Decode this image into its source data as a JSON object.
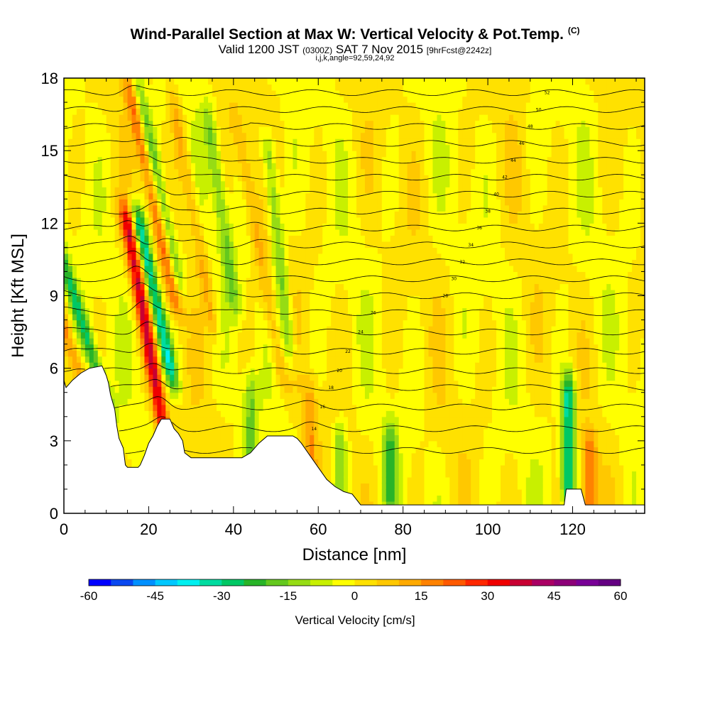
{
  "header": {
    "title": "Wind-Parallel Section at Max W: Vertical Velocity & Pot.Temp.",
    "copyright": "(C)",
    "valid_prefix": "Valid 1200 JST",
    "valid_utc": "(0300Z)",
    "valid_date": "SAT 7 Nov 2015",
    "forecast": "[9hrFcst@2242z]",
    "indices": "i,j,k,angle=92,59,24,92"
  },
  "chart_data": {
    "type": "heatmap",
    "xlabel": "Distance [nm]",
    "ylabel": "Height [Kft MSL]",
    "xlim": [
      0,
      137
    ],
    "ylim": [
      0,
      18
    ],
    "x_ticks": [
      0,
      20,
      40,
      60,
      80,
      100,
      120
    ],
    "y_ticks": [
      0,
      3,
      6,
      9,
      12,
      15,
      18
    ],
    "colorbar": {
      "label": "Vertical Velocity [cm/s]",
      "range": [
        -60,
        60
      ],
      "ticks": [
        -60,
        -45,
        -30,
        -15,
        0,
        15,
        30,
        45,
        60
      ],
      "colors": [
        "#0000ff",
        "#0a48f0",
        "#0090ff",
        "#00c8ff",
        "#00f0f0",
        "#00dca0",
        "#00c864",
        "#28b428",
        "#64c81e",
        "#96dc14",
        "#c8f000",
        "#ffff00",
        "#ffe100",
        "#ffc800",
        "#ffaa00",
        "#ff8200",
        "#ff5a00",
        "#ff2800",
        "#f00000",
        "#c80032",
        "#aa0064",
        "#8c0078",
        "#780096",
        "#640082"
      ]
    },
    "terrain_profile": {
      "x": [
        0,
        0.5,
        2,
        4,
        6,
        9,
        10,
        10.5,
        11,
        12,
        12.5,
        13,
        14,
        14.5,
        15,
        17.5,
        18,
        19,
        20,
        21,
        22,
        23,
        25,
        26,
        27,
        28,
        28.5,
        30,
        40,
        42,
        44,
        46,
        48,
        50,
        52,
        54,
        55,
        56,
        58,
        60,
        62,
        64,
        66,
        68,
        70,
        118,
        118.5,
        122,
        123,
        137
      ],
      "y": [
        5.5,
        5.2,
        5.5,
        5.8,
        6.0,
        6.1,
        5.7,
        5.4,
        4.9,
        4.3,
        3.6,
        3.1,
        2.7,
        2.0,
        1.9,
        1.9,
        2.0,
        2.4,
        2.9,
        3.2,
        3.6,
        3.9,
        3.9,
        3.5,
        3.3,
        3.0,
        2.5,
        2.3,
        2.3,
        2.3,
        2.5,
        2.9,
        3.2,
        3.2,
        3.2,
        3.2,
        3.1,
        2.9,
        2.4,
        1.9,
        1.4,
        1.1,
        0.9,
        0.8,
        0.35,
        0.35,
        1.0,
        1.0,
        0.35,
        0.35
      ]
    },
    "updraft_bands": [
      {
        "x": 8.5,
        "y0": 3,
        "y1": 17,
        "w": 15,
        "tilt": -1.8
      },
      {
        "x": 24,
        "y0": 3,
        "y1": 12,
        "w": 35,
        "tilt": -1.0
      },
      {
        "x": 26,
        "y0": 9,
        "y1": 17.5,
        "w": 22,
        "tilt": -1.2
      },
      {
        "x": 35,
        "y0": 8,
        "y1": 17,
        "w": 12,
        "tilt": -1.0
      },
      {
        "x": 51,
        "y0": 6,
        "y1": 16,
        "w": 10,
        "tilt": -1.0
      },
      {
        "x": 58,
        "y0": 2,
        "y1": 4.5,
        "w": 14,
        "tilt": 0
      },
      {
        "x": 124,
        "y0": 0.4,
        "y1": 2.5,
        "w": 20,
        "tilt": 0
      }
    ],
    "downdraft_bands": [
      {
        "x": 9.5,
        "y0": 5,
        "y1": 16,
        "w": -25,
        "tilt": -1.8
      },
      {
        "x": 25,
        "y0": 6,
        "y1": 12,
        "w": -35,
        "tilt": -1.2
      },
      {
        "x": 26.5,
        "y0": 10,
        "y1": 17.5,
        "w": -20,
        "tilt": -1.2
      },
      {
        "x": 40,
        "y0": 9,
        "y1": 16,
        "w": -15,
        "tilt": -0.8
      },
      {
        "x": 53,
        "y0": 7,
        "y1": 15,
        "w": -18,
        "tilt": -0.6
      },
      {
        "x": 44,
        "y0": 2.5,
        "y1": 5,
        "w": -15,
        "tilt": 0
      },
      {
        "x": 65,
        "y0": 1,
        "y1": 3,
        "w": -15,
        "tilt": 0
      },
      {
        "x": 77,
        "y0": 0.8,
        "y1": 3,
        "w": -18,
        "tilt": 0
      },
      {
        "x": 119,
        "y0": 1,
        "y1": 5,
        "w": -35,
        "tilt": 0
      }
    ],
    "potential_temperature": {
      "series": [
        {
          "level_kft": 2.6,
          "label": ""
        },
        {
          "level_kft": 3.5,
          "label": "14"
        },
        {
          "level_kft": 4.4,
          "label": "16"
        },
        {
          "level_kft": 5.2,
          "label": "18"
        },
        {
          "level_kft": 5.9,
          "label": "20"
        },
        {
          "level_kft": 6.7,
          "label": "22"
        },
        {
          "level_kft": 7.5,
          "label": "24"
        },
        {
          "level_kft": 8.3,
          "label": "26"
        },
        {
          "level_kft": 9.0,
          "label": "28"
        },
        {
          "level_kft": 9.7,
          "label": "30"
        },
        {
          "level_kft": 10.4,
          "label": "32"
        },
        {
          "level_kft": 11.1,
          "label": "34"
        },
        {
          "level_kft": 11.8,
          "label": "36"
        },
        {
          "level_kft": 12.5,
          "label": "38"
        },
        {
          "level_kft": 13.2,
          "label": "40"
        },
        {
          "level_kft": 13.9,
          "label": "42"
        },
        {
          "level_kft": 14.6,
          "label": "44"
        },
        {
          "level_kft": 15.3,
          "label": "46"
        },
        {
          "level_kft": 16.0,
          "label": "48"
        },
        {
          "level_kft": 16.7,
          "label": "50"
        },
        {
          "level_kft": 17.4,
          "label": "52"
        }
      ]
    }
  }
}
